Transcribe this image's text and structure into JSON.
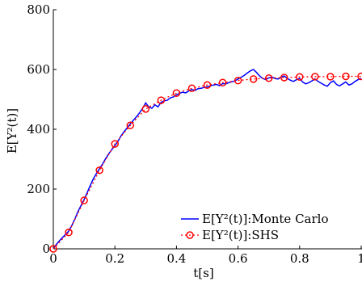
{
  "chart_data": {
    "type": "line",
    "xlabel": "t[s]",
    "ylabel": "E[Y²(t)]",
    "xlim": [
      0,
      1
    ],
    "ylim": [
      0,
      800
    ],
    "x_ticks": [
      0,
      0.2,
      0.4,
      0.6,
      0.8,
      1
    ],
    "x_tick_labels": [
      "0",
      "0.2",
      "0.4",
      "0.6",
      "0.8",
      "1"
    ],
    "y_ticks": [
      0,
      200,
      400,
      600,
      800
    ],
    "y_tick_labels": [
      "0",
      "200",
      "400",
      "600",
      "800"
    ],
    "grid": false,
    "legend_position": "bottom-right",
    "series": [
      {
        "name": "E[Y²(t)]:Monte Carlo",
        "color": "#0000ff",
        "style": "solid",
        "x": [
          0,
          0.01,
          0.02,
          0.03,
          0.04,
          0.05,
          0.06,
          0.07,
          0.08,
          0.09,
          0.1,
          0.11,
          0.12,
          0.13,
          0.14,
          0.15,
          0.16,
          0.17,
          0.18,
          0.19,
          0.2,
          0.21,
          0.22,
          0.23,
          0.24,
          0.25,
          0.26,
          0.27,
          0.28,
          0.29,
          0.3,
          0.31,
          0.32,
          0.33,
          0.34,
          0.35,
          0.36,
          0.37,
          0.38,
          0.39,
          0.4,
          0.41,
          0.42,
          0.43,
          0.44,
          0.45,
          0.46,
          0.47,
          0.48,
          0.49,
          0.5,
          0.51,
          0.52,
          0.53,
          0.54,
          0.55,
          0.56,
          0.57,
          0.58,
          0.59,
          0.6,
          0.61,
          0.62,
          0.63,
          0.64,
          0.65,
          0.66,
          0.67,
          0.68,
          0.69,
          0.7,
          0.71,
          0.72,
          0.73,
          0.74,
          0.75,
          0.76,
          0.77,
          0.78,
          0.79,
          0.8,
          0.81,
          0.82,
          0.83,
          0.84,
          0.85,
          0.86,
          0.87,
          0.88,
          0.89,
          0.9,
          0.91,
          0.92,
          0.93,
          0.94,
          0.95,
          0.96,
          0.97,
          0.98,
          0.99,
          1.0
        ],
        "y": [
          0,
          15,
          27,
          38,
          48,
          59,
          78,
          100,
          125,
          145,
          165,
          188,
          212,
          234,
          252,
          268,
          284,
          302,
          318,
          332,
          345,
          360,
          378,
          392,
          405,
          418,
          430,
          442,
          455,
          470,
          488,
          475,
          470,
          482,
          475,
          490,
          495,
          497,
          505,
          508,
          515,
          520,
          524,
          522,
          528,
          533,
          530,
          536,
          537,
          540,
          542,
          545,
          548,
          550,
          546,
          553,
          552,
          556,
          559,
          562,
          568,
          574,
          580,
          588,
          595,
          600,
          590,
          578,
          570,
          566,
          572,
          575,
          570,
          568,
          574,
          578,
          570,
          564,
          560,
          566,
          570,
          558,
          552,
          556,
          562,
          568,
          560,
          554,
          548,
          544,
          556,
          562,
          550,
          545,
          552,
          558,
          548,
          552,
          560,
          566,
          570
        ]
      },
      {
        "name": "E[Y²(t)]:SHS",
        "color": "#ff0000",
        "style": "dotted-circle-markers",
        "x": [
          0,
          0.05,
          0.1,
          0.15,
          0.2,
          0.25,
          0.3,
          0.35,
          0.4,
          0.45,
          0.5,
          0.55,
          0.6,
          0.65,
          0.7,
          0.75,
          0.8,
          0.85,
          0.9,
          0.95,
          1.0
        ],
        "y": [
          0,
          55,
          162,
          263,
          351,
          413,
          468,
          497,
          521,
          537,
          548,
          556,
          563,
          568,
          571,
          573,
          575,
          576,
          576,
          577,
          577
        ]
      }
    ]
  }
}
